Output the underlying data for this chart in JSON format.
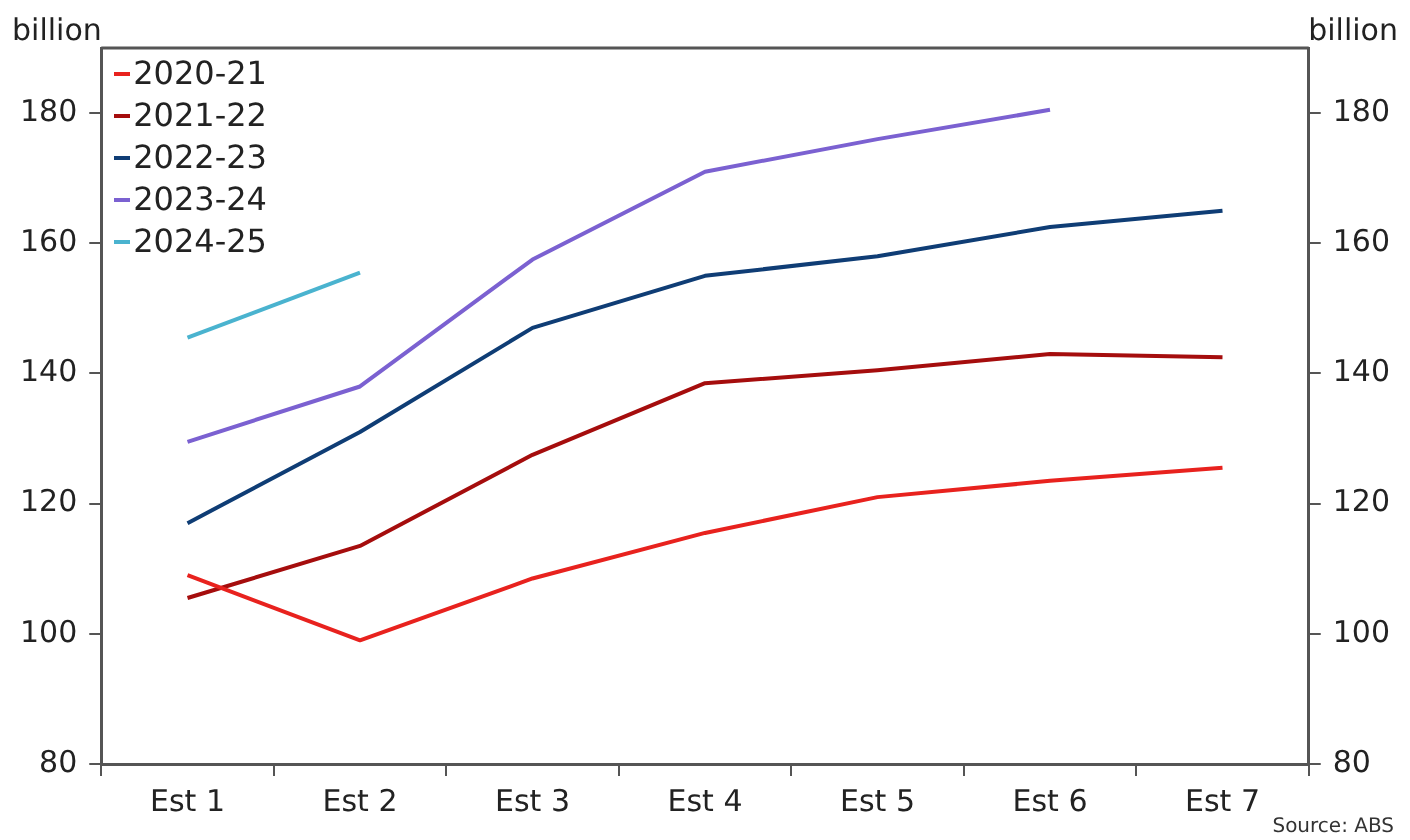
{
  "chart_data": {
    "type": "line",
    "ylabel": "billion",
    "y2label": "billion",
    "categories": [
      "Est 1",
      "Est 2",
      "Est 3",
      "Est 4",
      "Est 5",
      "Est 6",
      "Est 7"
    ],
    "series": [
      {
        "name": "2020-21",
        "color": "#e8221e",
        "values": [
          109,
          99,
          108.5,
          115.5,
          121,
          123.5,
          125.5
        ]
      },
      {
        "name": "2021-22",
        "color": "#a50d0d",
        "values": [
          105.5,
          113.5,
          127.5,
          138.5,
          140.5,
          143,
          142.5
        ]
      },
      {
        "name": "2022-23",
        "color": "#0f3d75",
        "values": [
          117,
          131,
          147,
          155,
          158,
          162.5,
          165
        ]
      },
      {
        "name": "2023-24",
        "color": "#7b61d1",
        "values": [
          129.5,
          138,
          157.5,
          171,
          176,
          180.5,
          null
        ]
      },
      {
        "name": "2024-25",
        "color": "#4ab3cf",
        "values": [
          145.5,
          155.5,
          null,
          null,
          null,
          null,
          null
        ]
      }
    ],
    "ylim": [
      80,
      190
    ],
    "yticks": [
      80,
      100,
      120,
      140,
      160,
      180
    ],
    "y2lim": [
      80,
      190
    ],
    "y2ticks": [
      80,
      100,
      120,
      140,
      160,
      180
    ],
    "legend": "top left",
    "grid": false,
    "marker": "none",
    "line_style": "solid",
    "annotations": [
      "Source: ABS"
    ]
  }
}
